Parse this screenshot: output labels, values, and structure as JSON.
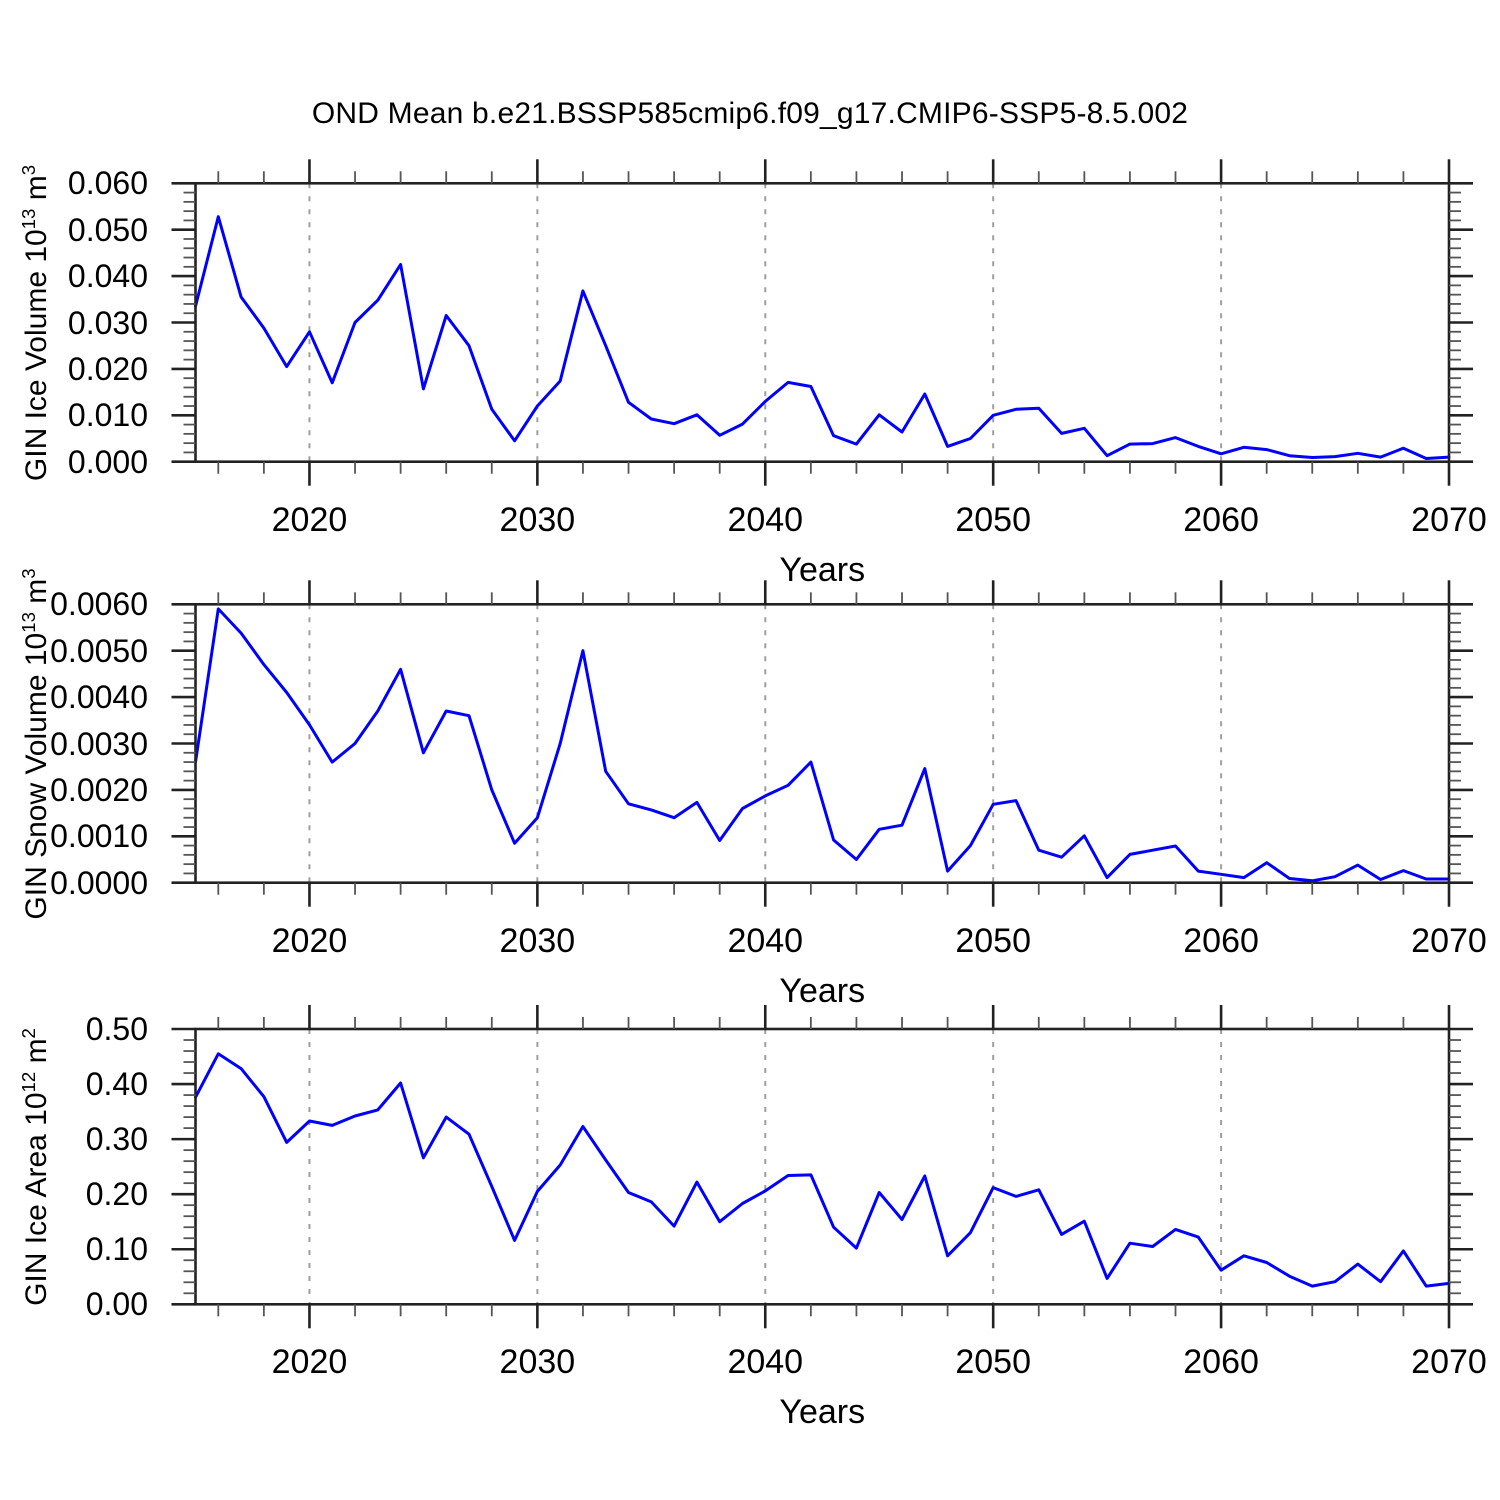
{
  "title": "OND Mean b.e21.BSSP585cmip6.f09_g17.CMIP6-SSP5-8.5.002",
  "colors": {
    "line": "#0000ff",
    "axis": "#222222",
    "gridline": "#9f9f9f",
    "text": "#000000",
    "background": "#ffffff"
  },
  "chart_data": [
    {
      "type": "line",
      "ylabel": "GIN Ice Volume 10^13 m^3",
      "xlabel": "Years",
      "line_color": "#0000ff",
      "xlim": [
        2015,
        2070
      ],
      "ylim": [
        0,
        0.06
      ],
      "grid": "vertical-dashed",
      "gridline_years": [
        2020,
        2030,
        2040,
        2050,
        2060
      ],
      "x_major_ticks": [
        2020,
        2030,
        2040,
        2050,
        2060,
        2070
      ],
      "x_tick_labels": [
        "2020",
        "2030",
        "2040",
        "2050",
        "2060",
        "2070"
      ],
      "x_minor_step": 2,
      "y_major_step": 0.01,
      "y_minor_step": 0.002,
      "y_tick_labels": [
        "0.000",
        "0.010",
        "0.020",
        "0.030",
        "0.040",
        "0.050",
        "0.060"
      ],
      "x": [
        2015,
        2016,
        2017,
        2018,
        2019,
        2020,
        2021,
        2022,
        2023,
        2024,
        2025,
        2026,
        2027,
        2028,
        2029,
        2030,
        2031,
        2032,
        2033,
        2034,
        2035,
        2036,
        2037,
        2038,
        2039,
        2040,
        2041,
        2042,
        2043,
        2044,
        2045,
        2046,
        2047,
        2048,
        2049,
        2050,
        2051,
        2052,
        2053,
        2054,
        2055,
        2056,
        2057,
        2058,
        2059,
        2060,
        2061,
        2062,
        2063,
        2064,
        2065,
        2066,
        2067,
        2068,
        2069,
        2070
      ],
      "values": [
        0.0335,
        0.0528,
        0.0355,
        0.0288,
        0.0205,
        0.028,
        0.017,
        0.03,
        0.0348,
        0.0425,
        0.0157,
        0.0315,
        0.025,
        0.0113,
        0.0045,
        0.012,
        0.0174,
        0.0368,
        0.025,
        0.0128,
        0.0092,
        0.0082,
        0.0101,
        0.0057,
        0.0081,
        0.013,
        0.0171,
        0.0162,
        0.0056,
        0.0038,
        0.0101,
        0.0064,
        0.0146,
        0.0033,
        0.005,
        0.01,
        0.0113,
        0.0115,
        0.0061,
        0.0072,
        0.0013,
        0.0038,
        0.0039,
        0.0052,
        0.0033,
        0.0017,
        0.0031,
        0.0026,
        0.0013,
        0.0009,
        0.0011,
        0.0018,
        0.001,
        0.0029,
        0.0007,
        0.001
      ]
    },
    {
      "type": "line",
      "ylabel": "GIN Snow Volume 10^13 m^3",
      "xlabel": "Years",
      "line_color": "#0000ff",
      "xlim": [
        2015,
        2070
      ],
      "ylim": [
        0,
        0.006
      ],
      "grid": "vertical-dashed",
      "gridline_years": [
        2020,
        2030,
        2040,
        2050,
        2060
      ],
      "x_major_ticks": [
        2020,
        2030,
        2040,
        2050,
        2060,
        2070
      ],
      "x_tick_labels": [
        "2020",
        "2030",
        "2040",
        "2050",
        "2060",
        "2070"
      ],
      "x_minor_step": 2,
      "y_major_step": 0.001,
      "y_minor_step": 0.0002,
      "y_tick_labels": [
        "0.0000",
        "0.0010",
        "0.0020",
        "0.0030",
        "0.0040",
        "0.0050",
        "0.0060"
      ],
      "x": [
        2015,
        2016,
        2017,
        2018,
        2019,
        2020,
        2021,
        2022,
        2023,
        2024,
        2025,
        2026,
        2027,
        2028,
        2029,
        2030,
        2031,
        2032,
        2033,
        2034,
        2035,
        2036,
        2037,
        2038,
        2039,
        2040,
        2041,
        2042,
        2043,
        2044,
        2045,
        2046,
        2047,
        2048,
        2049,
        2050,
        2051,
        2052,
        2053,
        2054,
        2055,
        2056,
        2057,
        2058,
        2059,
        2060,
        2061,
        2062,
        2063,
        2064,
        2065,
        2066,
        2067,
        2068,
        2069,
        2070
      ],
      "values": [
        0.0026,
        0.0059,
        0.00538,
        0.0047,
        0.0041,
        0.0034,
        0.0026,
        0.003,
        0.0037,
        0.0046,
        0.0028,
        0.0037,
        0.0036,
        0.002,
        0.00085,
        0.0014,
        0.003,
        0.005,
        0.0024,
        0.0017,
        0.00157,
        0.0014,
        0.00173,
        0.00091,
        0.0016,
        0.00187,
        0.0021,
        0.0026,
        0.00092,
        0.0005,
        0.00115,
        0.00124,
        0.00246,
        0.00025,
        0.0008,
        0.00169,
        0.00177,
        0.0007,
        0.00055,
        0.00101,
        0.00011,
        0.00061,
        0.0007,
        0.00079,
        0.00025,
        0.00018,
        0.00011,
        0.00043,
        9e-05,
        4e-05,
        0.00013,
        0.00038,
        7e-05,
        0.00026,
        8e-05,
        8e-05
      ]
    },
    {
      "type": "line",
      "ylabel": "GIN Ice Area 10^12 m^2",
      "xlabel": "Years",
      "line_color": "#0000ff",
      "xlim": [
        2015,
        2070
      ],
      "ylim": [
        0,
        0.5
      ],
      "grid": "vertical-dashed",
      "gridline_years": [
        2020,
        2030,
        2040,
        2050,
        2060
      ],
      "x_major_ticks": [
        2020,
        2030,
        2040,
        2050,
        2060,
        2070
      ],
      "x_tick_labels": [
        "2020",
        "2030",
        "2040",
        "2050",
        "2060",
        "2070"
      ],
      "x_minor_step": 2,
      "y_major_step": 0.1,
      "y_minor_step": 0.02,
      "y_tick_labels": [
        "0.00",
        "0.10",
        "0.20",
        "0.30",
        "0.40",
        "0.50"
      ],
      "x": [
        2015,
        2016,
        2017,
        2018,
        2019,
        2020,
        2021,
        2022,
        2023,
        2024,
        2025,
        2026,
        2027,
        2028,
        2029,
        2030,
        2031,
        2032,
        2033,
        2034,
        2035,
        2036,
        2037,
        2038,
        2039,
        2040,
        2041,
        2042,
        2043,
        2044,
        2045,
        2046,
        2047,
        2048,
        2049,
        2050,
        2051,
        2052,
        2053,
        2054,
        2055,
        2056,
        2057,
        2058,
        2059,
        2060,
        2061,
        2062,
        2063,
        2064,
        2065,
        2066,
        2067,
        2068,
        2069,
        2070
      ],
      "values": [
        0.376,
        0.455,
        0.428,
        0.377,
        0.294,
        0.333,
        0.325,
        0.342,
        0.353,
        0.402,
        0.266,
        0.34,
        0.309,
        0.214,
        0.116,
        0.205,
        0.253,
        0.323,
        0.262,
        0.203,
        0.186,
        0.142,
        0.222,
        0.15,
        0.183,
        0.206,
        0.234,
        0.235,
        0.14,
        0.102,
        0.203,
        0.154,
        0.233,
        0.088,
        0.13,
        0.212,
        0.196,
        0.208,
        0.127,
        0.151,
        0.047,
        0.111,
        0.105,
        0.136,
        0.122,
        0.062,
        0.088,
        0.076,
        0.051,
        0.033,
        0.041,
        0.073,
        0.041,
        0.097,
        0.033,
        0.038
      ]
    }
  ]
}
